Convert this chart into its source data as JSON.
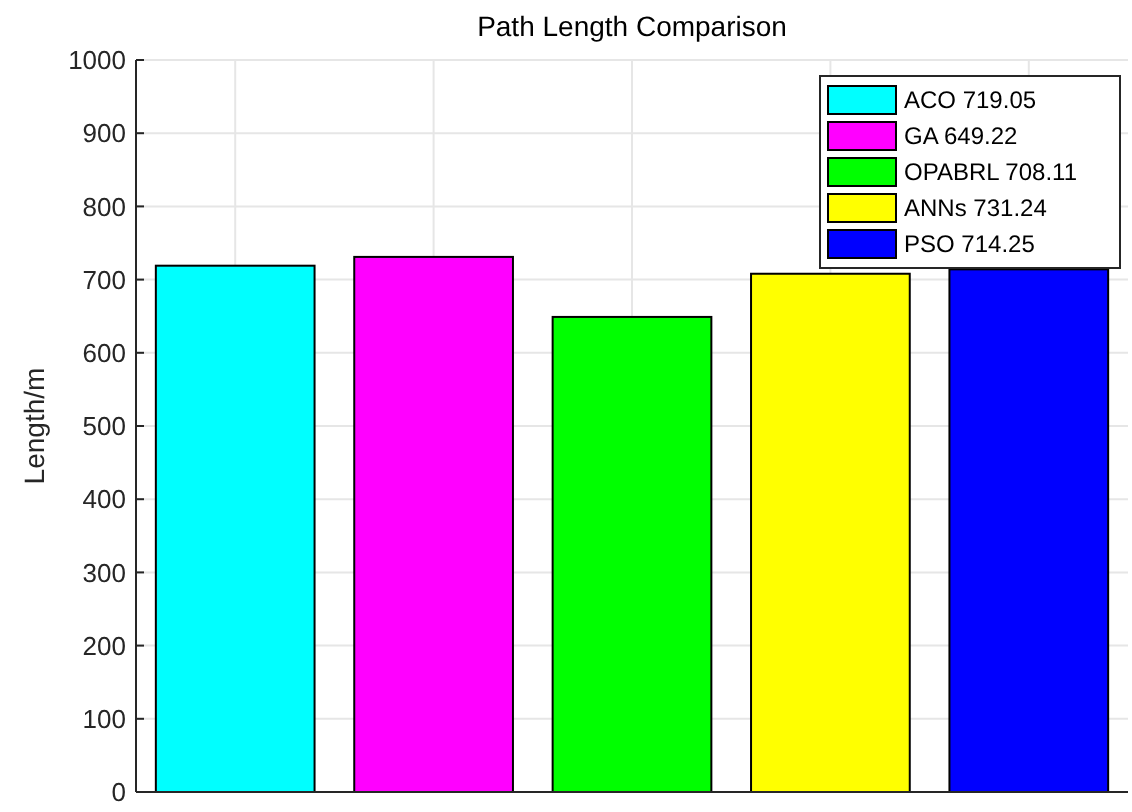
{
  "chart_data": {
    "type": "bar",
    "title": "Path Length Comparison",
    "ylabel": "Length/m",
    "categories": [
      null,
      null,
      null,
      null,
      null
    ],
    "series": [
      {
        "name": "ACO 719.05",
        "color": "#00ffff",
        "values": [
          719,
          null,
          null,
          null,
          null
        ]
      },
      {
        "name": "GA 649.22",
        "color": "#ff00ff",
        "values": [
          null,
          731,
          null,
          null,
          null
        ]
      },
      {
        "name": "OPABRL 708.11",
        "color": "#00ff00",
        "values": [
          null,
          null,
          649,
          null,
          null
        ]
      },
      {
        "name": "ANNs 731.24",
        "color": "#ffff00",
        "values": [
          null,
          null,
          null,
          708,
          null
        ]
      },
      {
        "name": "PSO 714.25",
        "color": "#0000ff",
        "values": [
          null,
          null,
          null,
          null,
          714
        ]
      }
    ],
    "ylim": [
      0,
      1000
    ],
    "yticks": [
      0,
      100,
      200,
      300,
      400,
      500,
      600,
      700,
      800,
      900,
      1000
    ],
    "grid": true,
    "legend": "top right"
  }
}
